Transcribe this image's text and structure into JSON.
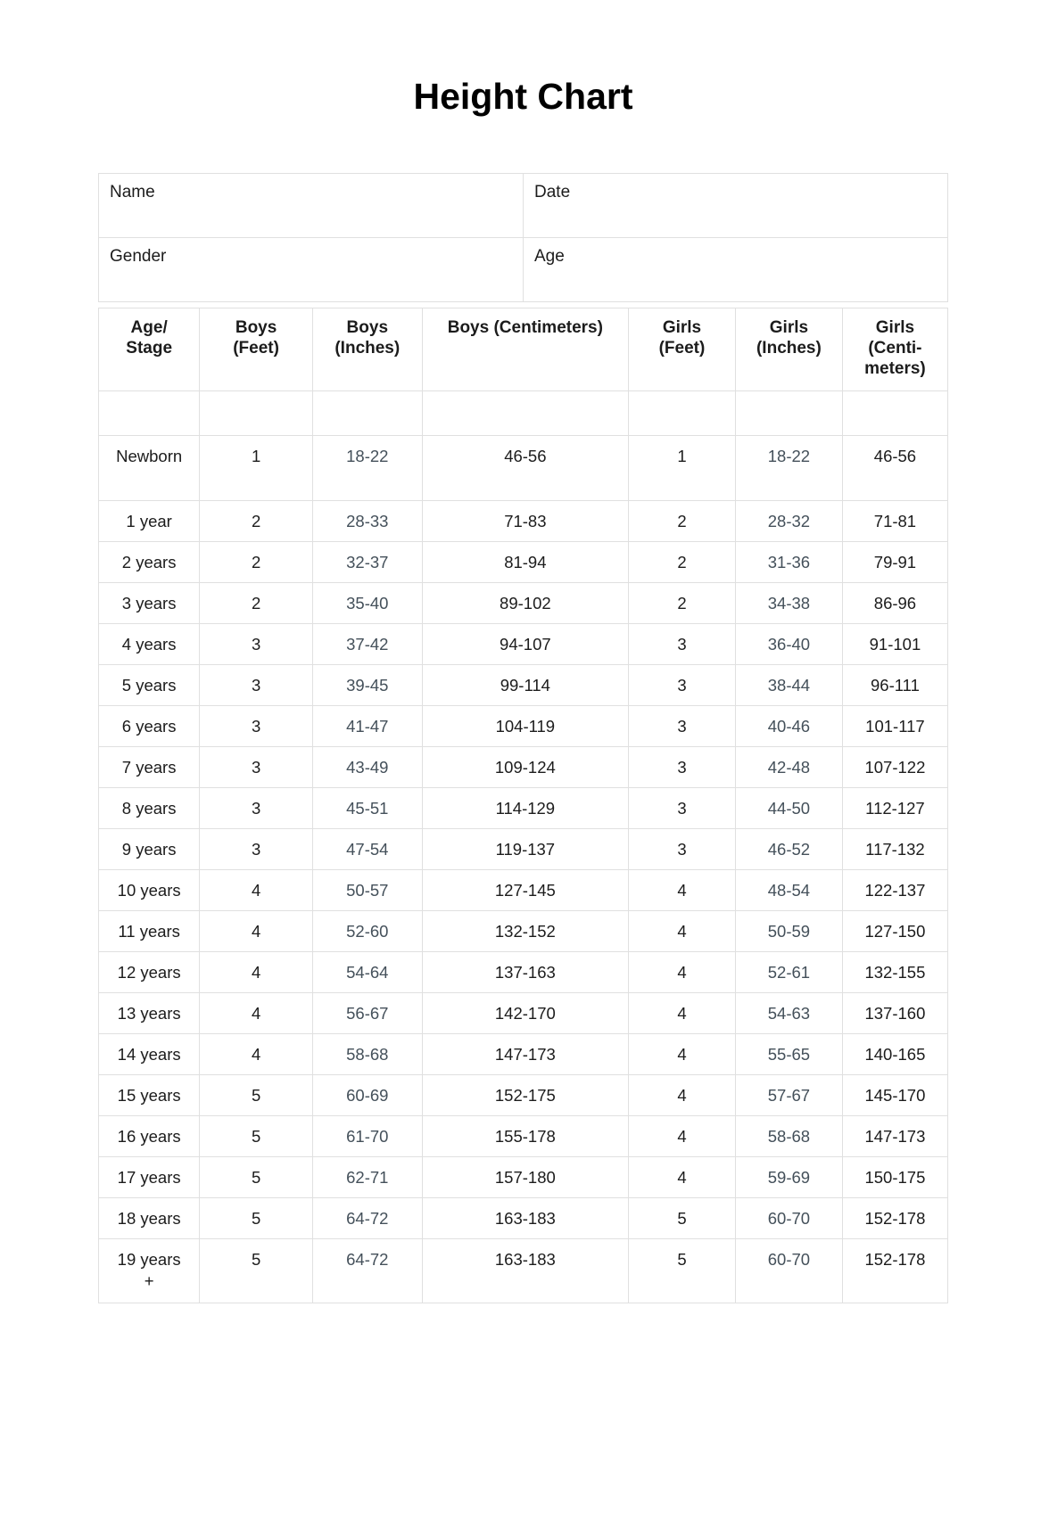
{
  "page": {
    "title": "Height Chart"
  },
  "form": {
    "fields": [
      {
        "label": "Name"
      },
      {
        "label": "Date"
      },
      {
        "label": "Gender"
      },
      {
        "label": "Age"
      }
    ]
  },
  "table": {
    "headers": [
      {
        "lines": [
          "Age/",
          "Stage"
        ]
      },
      {
        "lines": [
          "Boys",
          "(Feet)"
        ]
      },
      {
        "lines": [
          "Boys",
          "(Inches)"
        ]
      },
      {
        "lines": [
          "Boys (Centimeters)"
        ]
      },
      {
        "lines": [
          "Girls",
          "(Feet)"
        ]
      },
      {
        "lines": [
          "Girls",
          "(Inches)"
        ]
      },
      {
        "lines": [
          "Girls",
          "(Centi-",
          "meters)"
        ]
      }
    ],
    "rows": [
      {
        "age": [
          "Newborn"
        ],
        "boys_feet": "1",
        "boys_inches": "18-22",
        "boys_cm": "46-56",
        "girls_feet": "1",
        "girls_inches": "18-22",
        "girls_cm": "46-56"
      },
      {
        "age": [
          "1 year"
        ],
        "boys_feet": "2",
        "boys_inches": "28-33",
        "boys_cm": "71-83",
        "girls_feet": "2",
        "girls_inches": "28-32",
        "girls_cm": "71-81"
      },
      {
        "age": [
          "2 years"
        ],
        "boys_feet": "2",
        "boys_inches": "32-37",
        "boys_cm": "81-94",
        "girls_feet": "2",
        "girls_inches": "31-36",
        "girls_cm": "79-91"
      },
      {
        "age": [
          "3 years"
        ],
        "boys_feet": "2",
        "boys_inches": "35-40",
        "boys_cm": "89-102",
        "girls_feet": "2",
        "girls_inches": "34-38",
        "girls_cm": "86-96"
      },
      {
        "age": [
          "4 years"
        ],
        "boys_feet": "3",
        "boys_inches": "37-42",
        "boys_cm": "94-107",
        "girls_feet": "3",
        "girls_inches": "36-40",
        "girls_cm": "91-101"
      },
      {
        "age": [
          "5 years"
        ],
        "boys_feet": "3",
        "boys_inches": "39-45",
        "boys_cm": "99-114",
        "girls_feet": "3",
        "girls_inches": "38-44",
        "girls_cm": "96-111"
      },
      {
        "age": [
          "6 years"
        ],
        "boys_feet": "3",
        "boys_inches": "41-47",
        "boys_cm": "104-119",
        "girls_feet": "3",
        "girls_inches": "40-46",
        "girls_cm": "101-117"
      },
      {
        "age": [
          "7 years"
        ],
        "boys_feet": "3",
        "boys_inches": "43-49",
        "boys_cm": "109-124",
        "girls_feet": "3",
        "girls_inches": "42-48",
        "girls_cm": "107-122"
      },
      {
        "age": [
          "8 years"
        ],
        "boys_feet": "3",
        "boys_inches": "45-51",
        "boys_cm": "114-129",
        "girls_feet": "3",
        "girls_inches": "44-50",
        "girls_cm": "112-127"
      },
      {
        "age": [
          "9 years"
        ],
        "boys_feet": "3",
        "boys_inches": "47-54",
        "boys_cm": "119-137",
        "girls_feet": "3",
        "girls_inches": "46-52",
        "girls_cm": "117-132"
      },
      {
        "age": [
          "10 years"
        ],
        "boys_feet": "4",
        "boys_inches": "50-57",
        "boys_cm": "127-145",
        "girls_feet": "4",
        "girls_inches": "48-54",
        "girls_cm": "122-137"
      },
      {
        "age": [
          "11 years"
        ],
        "boys_feet": "4",
        "boys_inches": "52-60",
        "boys_cm": "132-152",
        "girls_feet": "4",
        "girls_inches": "50-59",
        "girls_cm": "127-150"
      },
      {
        "age": [
          "12 years"
        ],
        "boys_feet": "4",
        "boys_inches": "54-64",
        "boys_cm": "137-163",
        "girls_feet": "4",
        "girls_inches": "52-61",
        "girls_cm": "132-155"
      },
      {
        "age": [
          "13 years"
        ],
        "boys_feet": "4",
        "boys_inches": "56-67",
        "boys_cm": "142-170",
        "girls_feet": "4",
        "girls_inches": "54-63",
        "girls_cm": "137-160"
      },
      {
        "age": [
          "14 years"
        ],
        "boys_feet": "4",
        "boys_inches": "58-68",
        "boys_cm": "147-173",
        "girls_feet": "4",
        "girls_inches": "55-65",
        "girls_cm": "140-165"
      },
      {
        "age": [
          "15 years"
        ],
        "boys_feet": "5",
        "boys_inches": "60-69",
        "boys_cm": "152-175",
        "girls_feet": "4",
        "girls_inches": "57-67",
        "girls_cm": "145-170"
      },
      {
        "age": [
          "16 years"
        ],
        "boys_feet": "5",
        "boys_inches": "61-70",
        "boys_cm": "155-178",
        "girls_feet": "4",
        "girls_inches": "58-68",
        "girls_cm": "147-173"
      },
      {
        "age": [
          "17 years"
        ],
        "boys_feet": "5",
        "boys_inches": "62-71",
        "boys_cm": "157-180",
        "girls_feet": "4",
        "girls_inches": "59-69",
        "girls_cm": "150-175"
      },
      {
        "age": [
          "18 years"
        ],
        "boys_feet": "5",
        "boys_inches": "64-72",
        "boys_cm": "163-183",
        "girls_feet": "5",
        "girls_inches": "60-70",
        "girls_cm": "152-178"
      },
      {
        "age": [
          "19 years",
          "+"
        ],
        "boys_feet": "5",
        "boys_inches": "64-72",
        "boys_cm": "163-183",
        "girls_feet": "5",
        "girls_inches": "60-70",
        "girls_cm": "152-178"
      }
    ]
  },
  "colors": {
    "text": "#1c1c1c",
    "inches_text": "#44505a",
    "border": "#e0e0e0",
    "background": "#ffffff"
  }
}
